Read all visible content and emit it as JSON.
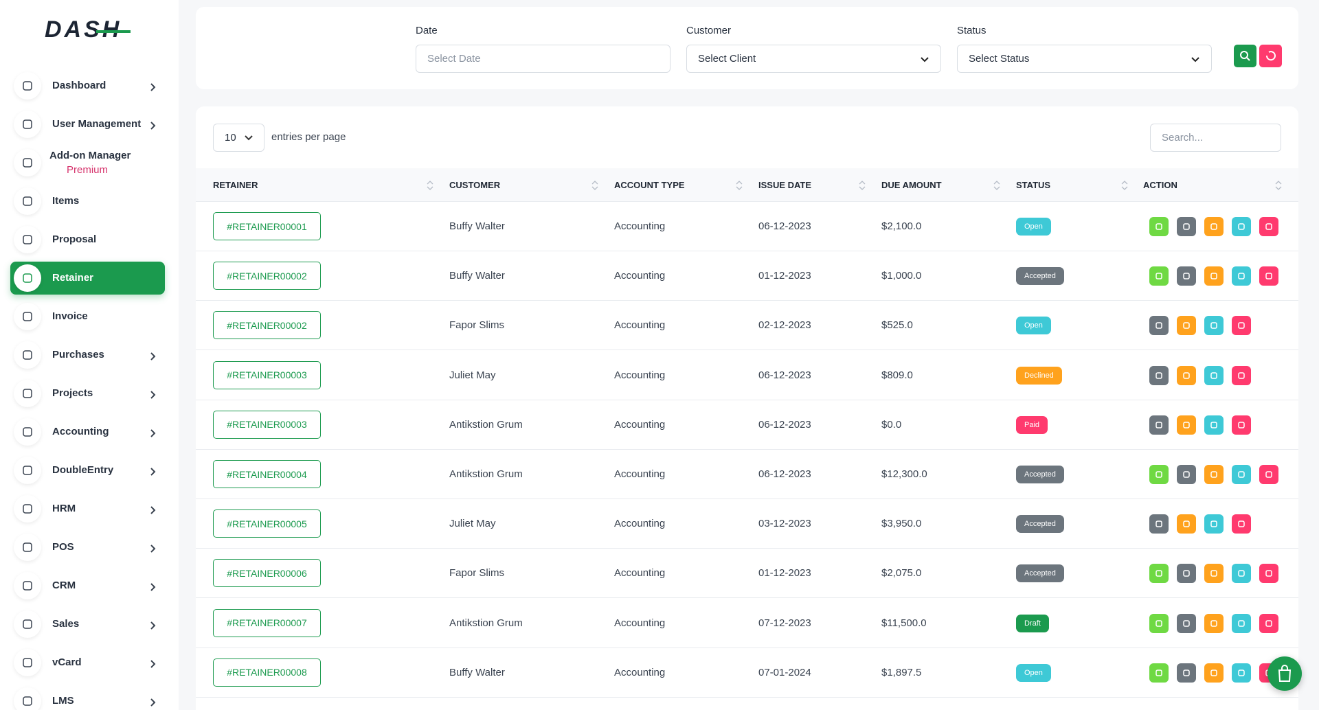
{
  "brand": "DASH",
  "sidebar": [
    {
      "label": "Dashboard",
      "has_arrow": true
    },
    {
      "label": "User Management",
      "has_arrow": true
    },
    {
      "label": "Add-on Manager",
      "sublabel": "Premium",
      "has_arrow": false
    },
    {
      "label": "Items",
      "has_arrow": false
    },
    {
      "label": "Proposal",
      "has_arrow": false
    },
    {
      "label": "Retainer",
      "has_arrow": false,
      "active": true
    },
    {
      "label": "Invoice",
      "has_arrow": false
    },
    {
      "label": "Purchases",
      "has_arrow": true
    },
    {
      "label": "Projects",
      "has_arrow": true
    },
    {
      "label": "Accounting",
      "has_arrow": true
    },
    {
      "label": "DoubleEntry",
      "has_arrow": true
    },
    {
      "label": "HRM",
      "has_arrow": true
    },
    {
      "label": "POS",
      "has_arrow": true
    },
    {
      "label": "CRM",
      "has_arrow": true
    },
    {
      "label": "Sales",
      "has_arrow": true
    },
    {
      "label": "vCard",
      "has_arrow": true
    },
    {
      "label": "LMS",
      "has_arrow": true
    }
  ],
  "filters": [
    {
      "label": "Date",
      "placeholder": "Select Date",
      "kind": "input"
    },
    {
      "label": "Customer",
      "placeholder": "Select Client",
      "kind": "select"
    },
    {
      "label": "Status",
      "placeholder": "Select Status",
      "kind": "select"
    }
  ],
  "table": {
    "page_size": "10",
    "page_size_label": "entries per page",
    "search_placeholder": "Search...",
    "columns": [
      "RETAINER",
      "CUSTOMER",
      "ACCOUNT TYPE",
      "ISSUE DATE",
      "DUE AMOUNT",
      "STATUS",
      "ACTION"
    ],
    "rows": [
      {
        "retainer": "#RETAINER00001",
        "customer": "Buffy Walter",
        "account_type": "Accounting",
        "issue_date": "06-12-2023",
        "due_amount": "$2,100.0",
        "status": "Open",
        "status_color": "#3ec9d6",
        "convertible": true
      },
      {
        "retainer": "#RETAINER00002",
        "customer": "Buffy Walter",
        "account_type": "Accounting",
        "issue_date": "01-12-2023",
        "due_amount": "$1,000.0",
        "status": "Accepted",
        "status_color": "#6c757d",
        "convertible": true
      },
      {
        "retainer": "#RETAINER00002",
        "customer": "Fapor Slims",
        "account_type": "Accounting",
        "issue_date": "02-12-2023",
        "due_amount": "$525.0",
        "status": "Open",
        "status_color": "#3ec9d6",
        "convertible": false
      },
      {
        "retainer": "#RETAINER00003",
        "customer": "Juliet May",
        "account_type": "Accounting",
        "issue_date": "06-12-2023",
        "due_amount": "$809.0",
        "status": "Declined",
        "status_color": "#ffa21d",
        "convertible": false
      },
      {
        "retainer": "#RETAINER00003",
        "customer": "Antikstion Grum",
        "account_type": "Accounting",
        "issue_date": "06-12-2023",
        "due_amount": "$0.0",
        "status": "Paid",
        "status_color": "#ff3a6e",
        "convertible": false
      },
      {
        "retainer": "#RETAINER00004",
        "customer": "Antikstion Grum",
        "account_type": "Accounting",
        "issue_date": "06-12-2023",
        "due_amount": "$12,300.0",
        "status": "Accepted",
        "status_color": "#6c757d",
        "convertible": true
      },
      {
        "retainer": "#RETAINER00005",
        "customer": "Juliet May",
        "account_type": "Accounting",
        "issue_date": "03-12-2023",
        "due_amount": "$3,950.0",
        "status": "Accepted",
        "status_color": "#6c757d",
        "convertible": false
      },
      {
        "retainer": "#RETAINER00006",
        "customer": "Fapor Slims",
        "account_type": "Accounting",
        "issue_date": "01-12-2023",
        "due_amount": "$2,075.0",
        "status": "Accepted",
        "status_color": "#6c757d",
        "convertible": true
      },
      {
        "retainer": "#RETAINER00007",
        "customer": "Antikstion Grum",
        "account_type": "Accounting",
        "issue_date": "07-12-2023",
        "due_amount": "$11,500.0",
        "status": "Draft",
        "status_color": "#1b9a4e",
        "convertible": true
      },
      {
        "retainer": "#RETAINER00008",
        "customer": "Buffy Walter",
        "account_type": "Accounting",
        "issue_date": "07-01-2024",
        "due_amount": "$1,897.5",
        "status": "Open",
        "status_color": "#3ec9d6",
        "convertible": true
      }
    ]
  }
}
